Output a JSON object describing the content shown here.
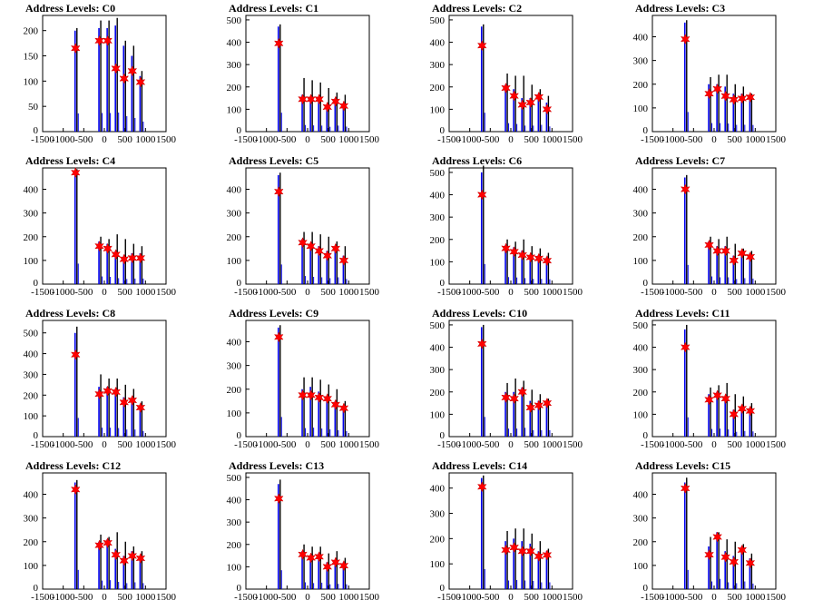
{
  "chart_data": [
    {
      "type": "bar",
      "title": "Address Levels: C0",
      "xlim": [
        -1500,
        1500
      ],
      "ylim": [
        0,
        230
      ],
      "yticks": [
        50,
        100,
        150,
        200
      ],
      "xticks": [
        -1500,
        -1000,
        -500,
        0,
        500,
        1000,
        1500
      ],
      "peaks_x": [
        -700,
        -120,
        80,
        280,
        480,
        680,
        880
      ],
      "black_values": [
        205,
        220,
        220,
        225,
        180,
        170,
        120
      ],
      "blue_values": [
        200,
        205,
        205,
        210,
        170,
        150,
        110
      ],
      "marker_values": [
        165,
        180,
        180,
        125,
        105,
        120,
        98
      ]
    },
    {
      "type": "bar",
      "title": "Address Levels: C1",
      "xlim": [
        -1500,
        1500
      ],
      "ylim": [
        0,
        520
      ],
      "yticks": [
        100,
        200,
        300,
        400,
        500
      ],
      "xticks": [
        -1500,
        -1000,
        -500,
        0,
        500,
        1000,
        1500
      ],
      "peaks_x": [
        -700,
        -120,
        80,
        280,
        480,
        680,
        880
      ],
      "black_values": [
        480,
        240,
        230,
        220,
        195,
        175,
        165
      ],
      "blue_values": [
        470,
        165,
        155,
        150,
        120,
        150,
        125
      ],
      "marker_values": [
        395,
        145,
        145,
        145,
        110,
        135,
        115
      ]
    },
    {
      "type": "bar",
      "title": "Address Levels: C2",
      "xlim": [
        -1500,
        1500
      ],
      "ylim": [
        0,
        520
      ],
      "yticks": [
        100,
        200,
        300,
        400,
        500
      ],
      "xticks": [
        -1500,
        -1000,
        -500,
        0,
        500,
        1000,
        1500
      ],
      "peaks_x": [
        -700,
        -120,
        80,
        280,
        480,
        680,
        880
      ],
      "black_values": [
        480,
        260,
        250,
        250,
        210,
        190,
        160
      ],
      "blue_values": [
        470,
        210,
        190,
        150,
        150,
        170,
        130
      ],
      "marker_values": [
        385,
        195,
        160,
        120,
        130,
        155,
        100
      ]
    },
    {
      "type": "bar",
      "title": "Address Levels: C3",
      "xlim": [
        -1500,
        1500
      ],
      "ylim": [
        0,
        490
      ],
      "yticks": [
        100,
        200,
        300,
        400
      ],
      "xticks": [
        -1500,
        -1000,
        -500,
        0,
        500,
        1000,
        1500
      ],
      "peaks_x": [
        -700,
        -120,
        80,
        280,
        480,
        680,
        880
      ],
      "black_values": [
        470,
        230,
        240,
        240,
        200,
        190,
        160
      ],
      "blue_values": [
        460,
        200,
        200,
        190,
        160,
        160,
        155
      ],
      "marker_values": [
        390,
        160,
        180,
        150,
        135,
        140,
        145
      ]
    },
    {
      "type": "bar",
      "title": "Address Levels: C4",
      "xlim": [
        -1500,
        1500
      ],
      "ylim": [
        0,
        490
      ],
      "yticks": [
        100,
        200,
        300,
        400
      ],
      "xticks": [
        -1500,
        -1000,
        -500,
        0,
        500,
        1000,
        1500
      ],
      "peaks_x": [
        -700,
        -120,
        80,
        280,
        480,
        680,
        880
      ],
      "black_values": [
        485,
        200,
        190,
        210,
        190,
        170,
        160
      ],
      "blue_values": [
        480,
        180,
        170,
        140,
        120,
        130,
        130
      ],
      "marker_values": [
        470,
        160,
        150,
        125,
        105,
        110,
        110
      ]
    },
    {
      "type": "bar",
      "title": "Address Levels: C5",
      "xlim": [
        -1500,
        1500
      ],
      "ylim": [
        0,
        490
      ],
      "yticks": [
        100,
        200,
        300,
        400
      ],
      "xticks": [
        -1500,
        -1000,
        -500,
        0,
        500,
        1000,
        1500
      ],
      "peaks_x": [
        -700,
        -120,
        80,
        280,
        480,
        680,
        880
      ],
      "black_values": [
        470,
        220,
        220,
        210,
        200,
        180,
        160
      ],
      "blue_values": [
        460,
        190,
        170,
        160,
        140,
        160,
        120
      ],
      "marker_values": [
        390,
        175,
        160,
        140,
        120,
        150,
        100
      ]
    },
    {
      "type": "bar",
      "title": "Address Levels: C6",
      "xlim": [
        -1500,
        1500
      ],
      "ylim": [
        0,
        520
      ],
      "yticks": [
        100,
        200,
        300,
        400,
        500
      ],
      "xticks": [
        -1500,
        -1000,
        -500,
        0,
        500,
        1000,
        1500
      ],
      "peaks_x": [
        -700,
        -120,
        80,
        280,
        480,
        680,
        880
      ],
      "black_values": [
        530,
        200,
        190,
        200,
        170,
        160,
        140
      ],
      "blue_values": [
        500,
        175,
        165,
        150,
        130,
        130,
        120
      ],
      "marker_values": [
        400,
        160,
        145,
        130,
        120,
        115,
        105
      ]
    },
    {
      "type": "bar",
      "title": "Address Levels: C7",
      "xlim": [
        -1500,
        1500
      ],
      "ylim": [
        0,
        490
      ],
      "yticks": [
        100,
        200,
        300,
        400
      ],
      "xticks": [
        -1500,
        -1000,
        -500,
        0,
        500,
        1000,
        1500
      ],
      "peaks_x": [
        -700,
        -120,
        80,
        280,
        480,
        680,
        880
      ],
      "black_values": [
        460,
        200,
        190,
        200,
        170,
        150,
        140
      ],
      "blue_values": [
        450,
        180,
        160,
        160,
        120,
        140,
        130
      ],
      "marker_values": [
        400,
        165,
        140,
        140,
        100,
        130,
        115
      ]
    },
    {
      "type": "bar",
      "title": "Address Levels: C8",
      "xlim": [
        -1500,
        1500
      ],
      "ylim": [
        0,
        560
      ],
      "yticks": [
        100,
        200,
        300,
        400,
        500
      ],
      "xticks": [
        -1500,
        -1000,
        -500,
        0,
        500,
        1000,
        1500
      ],
      "peaks_x": [
        -700,
        -120,
        80,
        280,
        480,
        680,
        880
      ],
      "black_values": [
        530,
        300,
        280,
        280,
        250,
        230,
        170
      ],
      "blue_values": [
        500,
        240,
        240,
        230,
        190,
        190,
        150
      ],
      "marker_values": [
        395,
        205,
        220,
        215,
        165,
        175,
        140
      ]
    },
    {
      "type": "bar",
      "title": "Address Levels: C9",
      "xlim": [
        -1500,
        1500
      ],
      "ylim": [
        0,
        490
      ],
      "yticks": [
        100,
        200,
        300,
        400
      ],
      "xticks": [
        -1500,
        -1000,
        -500,
        0,
        500,
        1000,
        1500
      ],
      "peaks_x": [
        -700,
        -120,
        80,
        280,
        480,
        680,
        880
      ],
      "black_values": [
        470,
        250,
        250,
        240,
        220,
        200,
        150
      ],
      "blue_values": [
        460,
        200,
        210,
        190,
        170,
        150,
        130
      ],
      "marker_values": [
        420,
        175,
        175,
        165,
        160,
        135,
        120
      ]
    },
    {
      "type": "bar",
      "title": "Address Levels: C10",
      "xlim": [
        -1500,
        1500
      ],
      "ylim": [
        0,
        520
      ],
      "yticks": [
        100,
        200,
        300,
        400,
        500
      ],
      "xticks": [
        -1500,
        -1000,
        -500,
        0,
        500,
        1000,
        1500
      ],
      "peaks_x": [
        -700,
        -120,
        80,
        280,
        480,
        680,
        880
      ],
      "black_values": [
        500,
        240,
        260,
        250,
        210,
        190,
        170
      ],
      "blue_values": [
        490,
        200,
        200,
        220,
        160,
        160,
        160
      ],
      "marker_values": [
        415,
        175,
        170,
        200,
        130,
        140,
        150
      ]
    },
    {
      "type": "bar",
      "title": "Address Levels: C11",
      "xlim": [
        -1500,
        1500
      ],
      "ylim": [
        0,
        520
      ],
      "yticks": [
        100,
        200,
        300,
        400,
        500
      ],
      "xticks": [
        -1500,
        -1000,
        -500,
        0,
        500,
        1000,
        1500
      ],
      "peaks_x": [
        -700,
        -120,
        80,
        280,
        480,
        680,
        880
      ],
      "black_values": [
        500,
        220,
        230,
        240,
        190,
        180,
        150
      ],
      "blue_values": [
        480,
        190,
        200,
        180,
        120,
        140,
        130
      ],
      "marker_values": [
        400,
        165,
        185,
        170,
        100,
        125,
        115
      ]
    },
    {
      "type": "bar",
      "title": "Address Levels: C12",
      "xlim": [
        -1500,
        1500
      ],
      "ylim": [
        0,
        490
      ],
      "yticks": [
        100,
        200,
        300,
        400
      ],
      "xticks": [
        -1500,
        -1000,
        -500,
        0,
        500,
        1000,
        1500
      ],
      "peaks_x": [
        -700,
        -120,
        80,
        280,
        480,
        680,
        880
      ],
      "black_values": [
        460,
        230,
        220,
        240,
        200,
        180,
        160
      ],
      "blue_values": [
        450,
        200,
        210,
        170,
        140,
        160,
        140
      ],
      "marker_values": [
        420,
        185,
        195,
        145,
        120,
        140,
        130
      ]
    },
    {
      "type": "bar",
      "title": "Address Levels: C13",
      "xlim": [
        -1500,
        1500
      ],
      "ylim": [
        0,
        520
      ],
      "yticks": [
        100,
        200,
        300,
        400,
        500
      ],
      "xticks": [
        -1500,
        -1000,
        -500,
        0,
        500,
        1000,
        1500
      ],
      "peaks_x": [
        -700,
        -120,
        80,
        280,
        480,
        680,
        880
      ],
      "black_values": [
        490,
        200,
        190,
        190,
        160,
        170,
        140
      ],
      "blue_values": [
        470,
        170,
        150,
        160,
        120,
        130,
        120
      ],
      "marker_values": [
        405,
        155,
        140,
        145,
        100,
        120,
        105
      ]
    },
    {
      "type": "bar",
      "title": "Address Levels: C14",
      "xlim": [
        -1500,
        1500
      ],
      "ylim": [
        0,
        460
      ],
      "yticks": [
        100,
        200,
        300,
        400
      ],
      "xticks": [
        -1500,
        -1000,
        -500,
        0,
        500,
        1000,
        1500
      ],
      "peaks_x": [
        -700,
        -120,
        80,
        280,
        480,
        680,
        880
      ],
      "black_values": [
        450,
        230,
        240,
        240,
        220,
        190,
        160
      ],
      "blue_values": [
        440,
        190,
        200,
        190,
        180,
        150,
        150
      ],
      "marker_values": [
        405,
        155,
        165,
        150,
        150,
        130,
        135
      ]
    },
    {
      "type": "bar",
      "title": "Address Levels: C15",
      "xlim": [
        -1500,
        1500
      ],
      "ylim": [
        0,
        490
      ],
      "yticks": [
        100,
        200,
        300,
        400
      ],
      "xticks": [
        -1500,
        -1000,
        -500,
        0,
        500,
        1000,
        1500
      ],
      "peaks_x": [
        -700,
        -120,
        80,
        280,
        480,
        680,
        880
      ],
      "black_values": [
        470,
        220,
        240,
        210,
        200,
        190,
        150
      ],
      "blue_values": [
        450,
        180,
        240,
        160,
        140,
        180,
        130
      ],
      "marker_values": [
        425,
        145,
        220,
        135,
        115,
        165,
        110
      ]
    }
  ]
}
